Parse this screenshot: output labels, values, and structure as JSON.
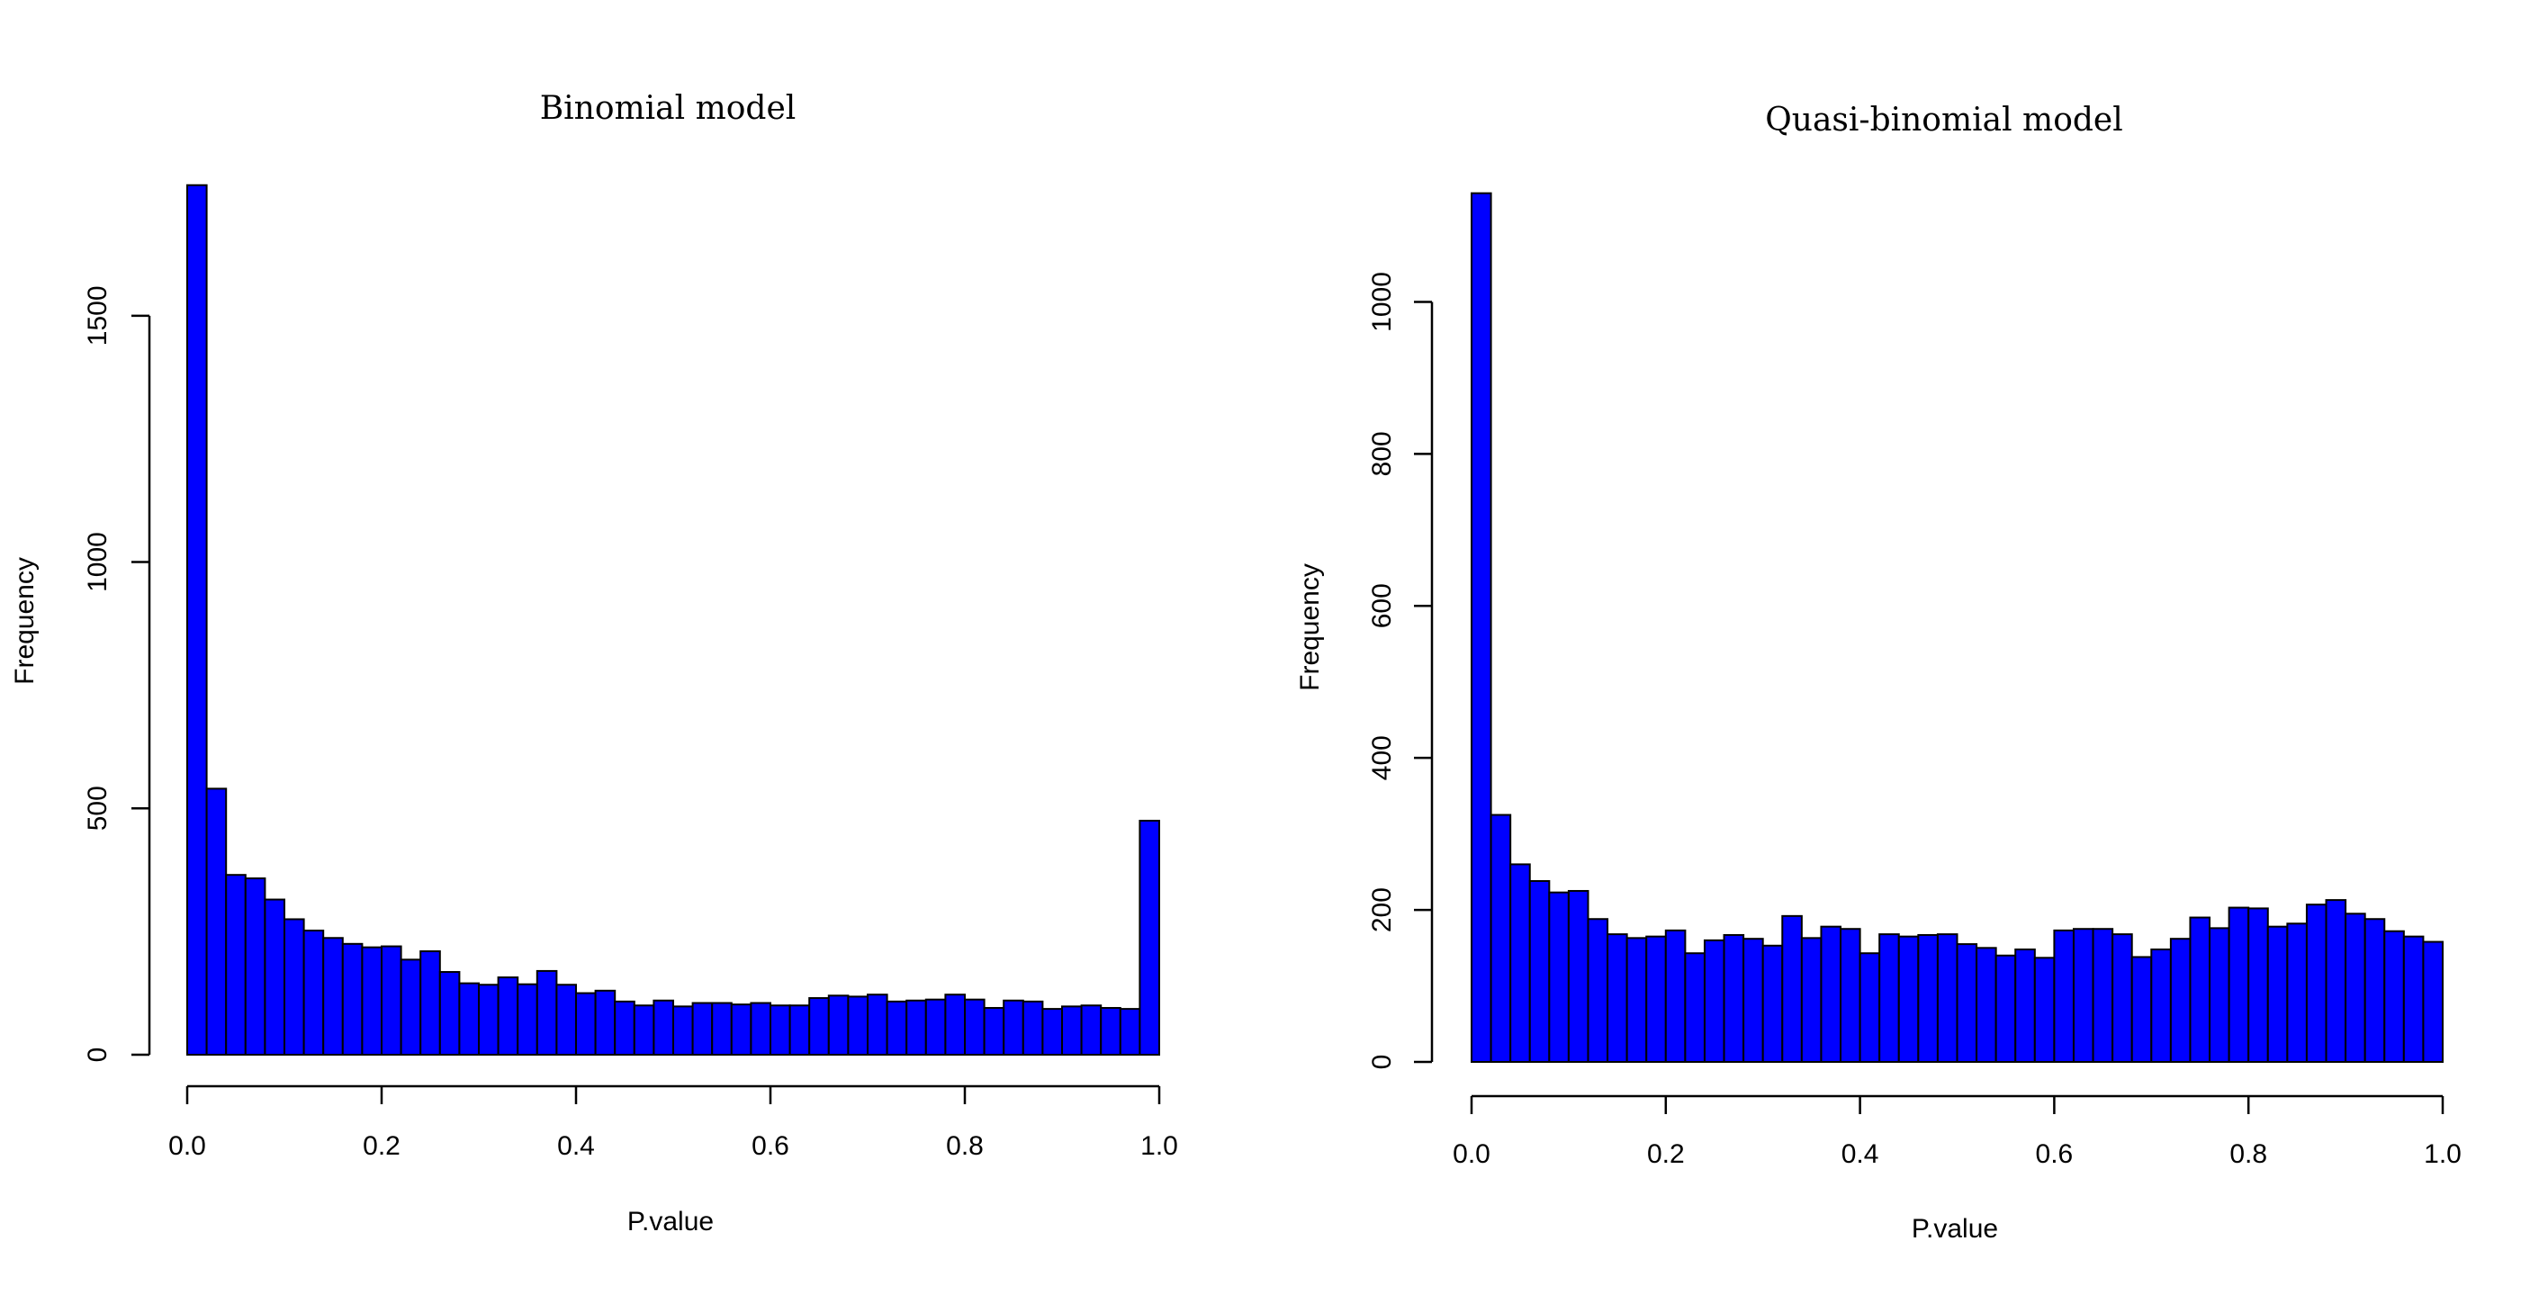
{
  "chart_data": [
    {
      "type": "bar",
      "title": "Binomial model",
      "xlabel": "P.value",
      "ylabel": "Frequency",
      "bar_color": "#0000ff",
      "xlim": [
        0,
        1
      ],
      "ylim": [
        0,
        1770
      ],
      "x_ticks": [
        "0.0",
        "0.2",
        "0.4",
        "0.6",
        "0.8",
        "1.0"
      ],
      "y_ticks": [
        "0",
        "500",
        "1000",
        "1500"
      ],
      "bin_edges": [
        0,
        1
      ],
      "values": [
        1765,
        540,
        365,
        358,
        315,
        275,
        252,
        237,
        225,
        218,
        220,
        193,
        210,
        168,
        145,
        142,
        157,
        143,
        170,
        142,
        125,
        130,
        108,
        100,
        110,
        98,
        105,
        105,
        102,
        105,
        100,
        100,
        115,
        120,
        118,
        122,
        108,
        110,
        112,
        122,
        112,
        95,
        110,
        108,
        93,
        98,
        100,
        95,
        93,
        475
      ]
    },
    {
      "type": "bar",
      "title": "Quasi-binomial model",
      "xlabel": "P.value",
      "ylabel": "Frequency",
      "bar_color": "#0000ff",
      "xlim": [
        0,
        1
      ],
      "ylim": [
        0,
        1145
      ],
      "x_ticks": [
        "0.0",
        "0.2",
        "0.4",
        "0.6",
        "0.8",
        "1.0"
      ],
      "y_ticks": [
        "0",
        "200",
        "400",
        "600",
        "800",
        "1000"
      ],
      "bin_edges": [
        0,
        1
      ],
      "values": [
        1143,
        325,
        260,
        238,
        223,
        225,
        188,
        168,
        163,
        165,
        173,
        143,
        160,
        167,
        162,
        153,
        192,
        163,
        178,
        175,
        143,
        168,
        165,
        167,
        168,
        155,
        150,
        140,
        148,
        137,
        173,
        175,
        175,
        168,
        138,
        148,
        162,
        190,
        176,
        203,
        202,
        178,
        182,
        207,
        213,
        195,
        188,
        172,
        165,
        158
      ]
    }
  ]
}
